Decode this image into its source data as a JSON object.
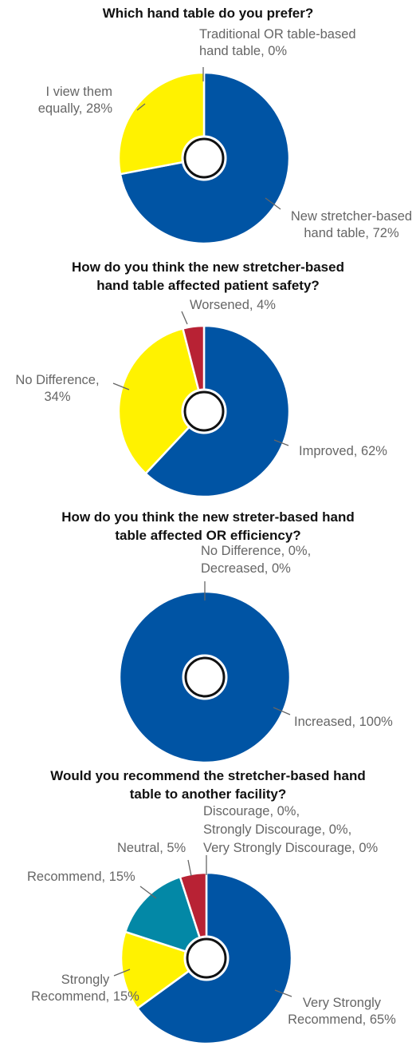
{
  "colors": {
    "blue": "#0054A4",
    "yellow": "#FFF200",
    "red": "#B82234",
    "teal": "#0388A6",
    "leader": "#666666"
  },
  "chart_data": [
    {
      "type": "pie",
      "title": "Which hand table do you prefer?",
      "slices": [
        {
          "label": "New stretcher-based hand table, 72%",
          "value": 72,
          "color": "blue"
        },
        {
          "label": "I view them equally, 28%",
          "value": 28,
          "color": "yellow"
        },
        {
          "label": "Traditional OR table-based hand table, 0%",
          "value": 0,
          "color": "red"
        }
      ]
    },
    {
      "type": "pie",
      "title": "How do you think the new stretcher-based hand table affected patient safety?",
      "slices": [
        {
          "label": "Improved, 62%",
          "value": 62,
          "color": "blue"
        },
        {
          "label": "No Difference, 34%",
          "value": 34,
          "color": "yellow"
        },
        {
          "label": "Worsened, 4%",
          "value": 4,
          "color": "red"
        }
      ]
    },
    {
      "type": "pie",
      "title": "How do you think the new streter-based hand table affected OR efficiency?",
      "slices": [
        {
          "label": "Increased, 100%",
          "value": 100,
          "color": "blue"
        },
        {
          "label": "No Difference, 0%, Decreased, 0%",
          "value": 0,
          "color": "yellow"
        }
      ]
    },
    {
      "type": "pie",
      "title": "Would you recommend the stretcher-based hand table to another facility?",
      "slices": [
        {
          "label": "Very Strongly Recommend, 65%",
          "value": 65,
          "color": "blue"
        },
        {
          "label": "Strongly Recommend, 15%",
          "value": 15,
          "color": "yellow"
        },
        {
          "label": "Recommend, 15%",
          "value": 15,
          "color": "teal"
        },
        {
          "label": "Neutral, 5%",
          "value": 5,
          "color": "red"
        },
        {
          "label": "Discourage, 0%, Strongly Discourage, 0%, Very Strongly Discourage, 0%",
          "value": 0,
          "color": "red"
        }
      ]
    }
  ],
  "labels": {
    "c0": {
      "l0a": "New stretcher-based",
      "l0b": "hand table, 72%",
      "l1a": "I view them",
      "l1b": "equally, 28%",
      "l2a": "Traditional OR table-based",
      "l2b": "hand table, 0%"
    },
    "c1": {
      "l0": "Improved, 62%",
      "l1a": "No Difference,",
      "l1b": "34%",
      "l2": "Worsened, 4%"
    },
    "c2": {
      "l0": "Increased, 100%",
      "l1a": "No Difference, 0%,",
      "l1b": "Decreased, 0%"
    },
    "c3": {
      "l0a": "Very Strongly",
      "l0b": "Recommend, 65%",
      "l1a": "Strongly",
      "l1b": "Recommend, 15%",
      "l2": "Recommend, 15%",
      "l3": "Neutral, 5%",
      "l4a": "Discourage, 0%,",
      "l4b": "Strongly Discourage, 0%,",
      "l4c": "Very Strongly Discourage, 0%"
    }
  }
}
